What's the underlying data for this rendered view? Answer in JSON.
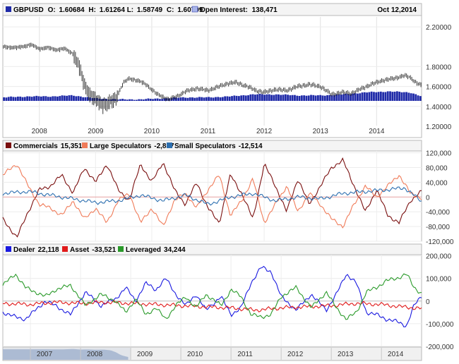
{
  "chart_data": [
    {
      "type": "line",
      "title": "GBPUSD",
      "header": {
        "symbol": "GBPUSD",
        "open_label": "O:",
        "open": "1.60684",
        "high_label": "H:",
        "high": "1.61264",
        "low_label": "L:",
        "low": "1.58749",
        "close_label": "C:",
        "close": "1.60799",
        "oi_label": "Open Interest:",
        "oi_value": "138,471",
        "date": "Oct 12,2014"
      },
      "ylim": [
        1.1,
        2.3
      ],
      "y_ticks": [
        "2.20000",
        "1.80000",
        "1.60000",
        "1.40000",
        "1.20000"
      ],
      "y_tick_values": [
        2.2,
        1.8,
        1.6,
        1.4,
        1.2
      ],
      "x_range": [
        2007.35,
        2014.8
      ],
      "x_tick_labels": [
        "2008",
        "2009",
        "2010",
        "2011",
        "2012",
        "2013",
        "2014"
      ],
      "x_tick_values": [
        2008,
        2009,
        2010,
        2011,
        2012,
        2013,
        2014
      ],
      "series": [
        {
          "name": "GBPUSD",
          "color": "#222222",
          "x": [
            2007.35,
            2007.6,
            2007.85,
            2008.0,
            2008.15,
            2008.3,
            2008.45,
            2008.6,
            2008.7,
            2008.8,
            2008.9,
            2009.0,
            2009.1,
            2009.2,
            2009.35,
            2009.5,
            2009.6,
            2009.75,
            2009.9,
            2010.1,
            2010.3,
            2010.45,
            2010.6,
            2010.8,
            2011.0,
            2011.2,
            2011.35,
            2011.5,
            2011.7,
            2011.85,
            2012.0,
            2012.2,
            2012.4,
            2012.6,
            2012.8,
            2013.0,
            2013.2,
            2013.4,
            2013.55,
            2013.7,
            2013.9,
            2014.1,
            2014.3,
            2014.5,
            2014.6,
            2014.7,
            2014.8
          ],
          "values": [
            2.0,
            1.99,
            2.02,
            1.98,
            1.99,
            1.97,
            1.98,
            1.93,
            1.81,
            1.62,
            1.52,
            1.46,
            1.43,
            1.42,
            1.47,
            1.64,
            1.68,
            1.66,
            1.62,
            1.52,
            1.47,
            1.5,
            1.55,
            1.58,
            1.56,
            1.6,
            1.63,
            1.64,
            1.6,
            1.56,
            1.54,
            1.57,
            1.56,
            1.6,
            1.62,
            1.6,
            1.52,
            1.54,
            1.53,
            1.57,
            1.62,
            1.66,
            1.68,
            1.71,
            1.69,
            1.64,
            1.61
          ]
        },
        {
          "name": "Open Interest",
          "color": "#1f2aa8",
          "x": [
            2007.35,
            2007.8,
            2008.2,
            2008.6,
            2009.0,
            2009.4,
            2009.8,
            2010.2,
            2010.6,
            2011.0,
            2011.4,
            2011.8,
            2012.2,
            2012.6,
            2013.0,
            2013.4,
            2013.8,
            2014.2,
            2014.6,
            2014.8
          ],
          "values": [
            1.49,
            1.5,
            1.5,
            1.51,
            1.48,
            1.47,
            1.47,
            1.48,
            1.49,
            1.49,
            1.5,
            1.52,
            1.52,
            1.51,
            1.51,
            1.52,
            1.54,
            1.55,
            1.54,
            1.5
          ]
        }
      ]
    },
    {
      "type": "line",
      "title": "",
      "ylim": [
        -120000,
        125000
      ],
      "y_ticks": [
        "120,000",
        "80,000",
        "40,000",
        "0",
        "-40,000",
        "-80,000",
        "-120,000"
      ],
      "y_tick_values": [
        120000,
        80000,
        40000,
        0,
        -40000,
        -80000,
        -120000
      ],
      "x_range": [
        2007.35,
        2014.8
      ],
      "series": [
        {
          "name": "Commercials",
          "label_value": "15,351",
          "color": "#7a0f0f",
          "x": [
            2007.35,
            2007.6,
            2007.8,
            2008.0,
            2008.2,
            2008.4,
            2008.6,
            2008.8,
            2009.0,
            2009.2,
            2009.4,
            2009.6,
            2009.8,
            2010.0,
            2010.2,
            2010.4,
            2010.6,
            2010.8,
            2011.0,
            2011.2,
            2011.4,
            2011.6,
            2011.8,
            2012.0,
            2012.2,
            2012.4,
            2012.6,
            2012.8,
            2013.0,
            2013.2,
            2013.4,
            2013.6,
            2013.8,
            2014.0,
            2014.2,
            2014.4,
            2014.6,
            2014.8
          ],
          "values": [
            -60000,
            -110000,
            -40000,
            20000,
            30000,
            60000,
            10000,
            80000,
            40000,
            90000,
            20000,
            -10000,
            90000,
            40000,
            95000,
            20000,
            -20000,
            40000,
            -30000,
            -70000,
            60000,
            10000,
            -60000,
            90000,
            30000,
            -40000,
            50000,
            -20000,
            30000,
            80000,
            100000,
            30000,
            -40000,
            20000,
            -50000,
            -70000,
            -10000,
            15000
          ]
        },
        {
          "name": "Large Speculators",
          "label_value": "-2,837",
          "color": "#f07c5a",
          "x": [
            2007.35,
            2007.6,
            2007.8,
            2008.0,
            2008.2,
            2008.4,
            2008.6,
            2008.8,
            2009.0,
            2009.2,
            2009.4,
            2009.6,
            2009.8,
            2010.0,
            2010.2,
            2010.4,
            2010.6,
            2010.8,
            2011.0,
            2011.2,
            2011.4,
            2011.6,
            2011.8,
            2012.0,
            2012.2,
            2012.4,
            2012.6,
            2012.8,
            2013.0,
            2013.2,
            2013.4,
            2013.6,
            2013.8,
            2014.0,
            2014.2,
            2014.4,
            2014.6,
            2014.8
          ],
          "values": [
            60000,
            90000,
            30000,
            -20000,
            -30000,
            -50000,
            -10000,
            -60000,
            -30000,
            -70000,
            -10000,
            10000,
            -70000,
            -30000,
            -80000,
            -10000,
            10000,
            -30000,
            20000,
            60000,
            -50000,
            -10000,
            50000,
            -70000,
            -20000,
            30000,
            -40000,
            10000,
            -20000,
            -60000,
            -80000,
            -20000,
            30000,
            0,
            30000,
            60000,
            10000,
            -3000
          ]
        },
        {
          "name": "Small Speculators",
          "label_value": "-12,514",
          "color": "#2c6fb0",
          "x": [
            2007.35,
            2007.8,
            2008.2,
            2008.6,
            2009.0,
            2009.4,
            2009.8,
            2010.2,
            2010.6,
            2011.0,
            2011.4,
            2011.8,
            2012.2,
            2012.6,
            2013.0,
            2013.4,
            2013.8,
            2014.2,
            2014.5,
            2014.8
          ],
          "values": [
            10000,
            15000,
            5000,
            -5000,
            -15000,
            -10000,
            5000,
            -10000,
            5000,
            -20000,
            0,
            10000,
            -10000,
            0,
            -5000,
            10000,
            15000,
            20000,
            25000,
            -12000
          ]
        }
      ]
    },
    {
      "type": "line",
      "title": "",
      "ylim": [
        -200000,
        205000
      ],
      "y_ticks": [
        "200,000",
        "100,000",
        "0",
        "-100,000",
        "-200,000"
      ],
      "y_tick_values": [
        200000,
        100000,
        0,
        -100000,
        -200000
      ],
      "x_range": [
        2006.45,
        2014.8
      ],
      "x_tick_labels": [
        "2007",
        "2008",
        "2009",
        "2010",
        "2011",
        "2012",
        "2013",
        "2014"
      ],
      "x_tick_values": [
        2007,
        2008,
        2009,
        2010,
        2011,
        2012,
        2013,
        2014
      ],
      "series": [
        {
          "name": "Dealer",
          "label_value": "22,118",
          "color": "#1a1ae0",
          "x": [
            2006.45,
            2006.7,
            2006.9,
            2007.1,
            2007.3,
            2007.5,
            2007.8,
            2008.1,
            2008.4,
            2008.7,
            2008.9,
            2009.1,
            2009.3,
            2009.5,
            2009.7,
            2009.9,
            2010.1,
            2010.3,
            2010.5,
            2010.8,
            2011.0,
            2011.2,
            2011.4,
            2011.6,
            2011.8,
            2012.0,
            2012.3,
            2012.6,
            2012.9,
            2013.1,
            2013.3,
            2013.5,
            2013.7,
            2013.9,
            2014.1,
            2014.3,
            2014.5,
            2014.65,
            2014.8
          ],
          "values": [
            -50000,
            -70000,
            -80000,
            -40000,
            0,
            -20000,
            -60000,
            40000,
            -20000,
            10000,
            60000,
            0,
            80000,
            50000,
            100000,
            30000,
            -20000,
            30000,
            -40000,
            20000,
            -60000,
            -30000,
            80000,
            150000,
            130000,
            20000,
            -40000,
            30000,
            -40000,
            30000,
            120000,
            80000,
            -50000,
            -60000,
            -80000,
            -90000,
            -110000,
            -20000,
            22000
          ]
        },
        {
          "name": "Asset",
          "label_value": "-33,521",
          "color": "#e01a1a",
          "x": [
            2006.45,
            2007.0,
            2007.5,
            2008.0,
            2008.5,
            2009.0,
            2009.5,
            2010.0,
            2010.5,
            2011.0,
            2011.5,
            2012.0,
            2012.5,
            2013.0,
            2013.5,
            2014.0,
            2014.4,
            2014.8
          ],
          "values": [
            -10000,
            -15000,
            -5000,
            -10000,
            -5000,
            -10000,
            -15000,
            -20000,
            -25000,
            -30000,
            -40000,
            -30000,
            -25000,
            -20000,
            -10000,
            -15000,
            -25000,
            -33000
          ]
        },
        {
          "name": "Leveraged",
          "label_value": "34,244",
          "color": "#2a9a2a",
          "x": [
            2006.45,
            2006.7,
            2006.9,
            2007.1,
            2007.3,
            2007.5,
            2007.8,
            2008.1,
            2008.4,
            2008.7,
            2008.9,
            2009.1,
            2009.3,
            2009.5,
            2009.7,
            2009.9,
            2010.1,
            2010.3,
            2010.5,
            2010.8,
            2011.0,
            2011.2,
            2011.4,
            2011.6,
            2011.8,
            2012.0,
            2012.3,
            2012.6,
            2012.9,
            2013.1,
            2013.3,
            2013.5,
            2013.7,
            2013.9,
            2014.1,
            2014.3,
            2014.5,
            2014.65,
            2014.8
          ],
          "values": [
            70000,
            120000,
            60000,
            40000,
            20000,
            50000,
            70000,
            -20000,
            30000,
            0,
            -50000,
            10000,
            -60000,
            -30000,
            -80000,
            -20000,
            20000,
            -30000,
            30000,
            -20000,
            50000,
            20000,
            -60000,
            -70000,
            -60000,
            20000,
            60000,
            -30000,
            40000,
            -30000,
            -80000,
            -50000,
            40000,
            60000,
            90000,
            100000,
            120000,
            60000,
            34000
          ]
        }
      ]
    }
  ]
}
